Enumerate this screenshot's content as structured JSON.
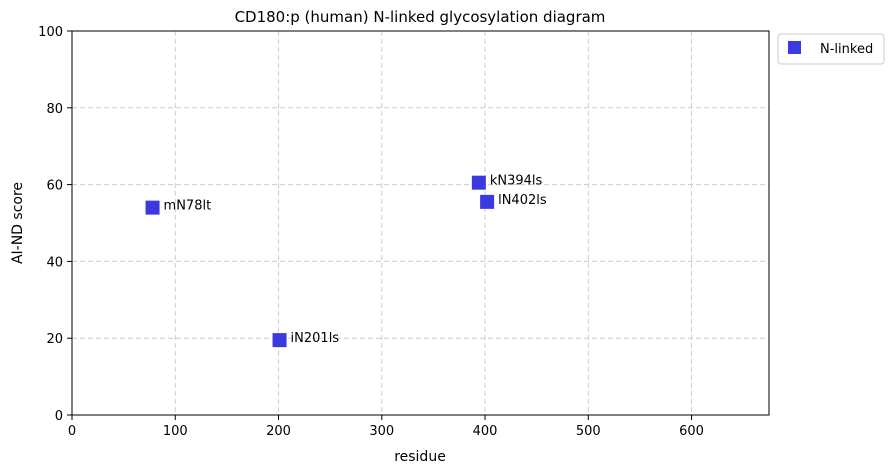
{
  "chart_data": {
    "type": "scatter",
    "title": "CD180:p (human) N-linked glycosylation diagram",
    "xlabel": "residue",
    "ylabel": "AI-ND score",
    "xlim": [
      0,
      675
    ],
    "ylim": [
      0,
      100
    ],
    "xticks": [
      0,
      100,
      200,
      300,
      400,
      500,
      600
    ],
    "yticks": [
      0,
      20,
      40,
      60,
      80,
      100
    ],
    "grid": true,
    "legend_placement": "outside-top-right",
    "series": [
      {
        "name": "N-linked",
        "color": "#3a3ae0",
        "marker": "square",
        "points": [
          {
            "x": 78,
            "y": 54,
            "label": "mN78lt"
          },
          {
            "x": 201,
            "y": 19.5,
            "label": "iN201ls"
          },
          {
            "x": 394,
            "y": 60.5,
            "label": "kN394ls"
          },
          {
            "x": 402,
            "y": 55.5,
            "label": "lN402ls"
          }
        ]
      }
    ]
  }
}
